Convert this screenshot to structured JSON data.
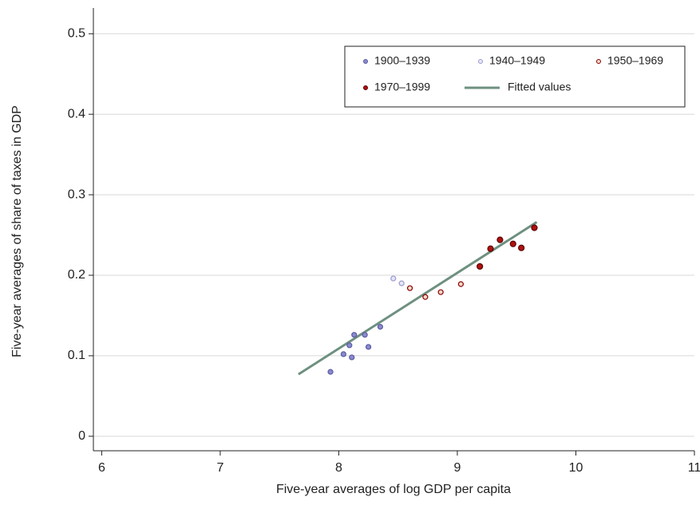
{
  "chart_data": {
    "type": "scatter",
    "x_label": "Five-year averages of log GDP per capita",
    "y_label": "Five-year averages of share of taxes in GDP",
    "xlim": [
      5.93,
      11
    ],
    "ylim": [
      -0.018,
      0.532
    ],
    "xticks": [
      6,
      7,
      8,
      9,
      10,
      11
    ],
    "yticks": [
      0,
      0.1,
      0.2,
      0.3,
      0.4,
      0.5
    ],
    "grid": true,
    "legend": "top-right",
    "series": [
      {
        "name": "1900–1939",
        "color": "#8a8ad0",
        "edge": "#5a5aa0",
        "x": [
          7.93,
          8.04,
          8.09,
          8.11,
          8.13,
          8.22,
          8.25,
          8.35
        ],
        "values": [
          0.08,
          0.102,
          0.113,
          0.098,
          0.126,
          0.126,
          0.111,
          0.136
        ]
      },
      {
        "name": "1940–1949",
        "color": "#e6e6fa",
        "edge": "#9a9ad0",
        "x": [
          8.46,
          8.53
        ],
        "values": [
          0.196,
          0.19
        ]
      },
      {
        "name": "1950–1969",
        "color": "#f2d8c8",
        "edge": "#8b0000",
        "x": [
          8.6,
          8.73,
          8.86,
          9.03
        ],
        "values": [
          0.184,
          0.173,
          0.179,
          0.189
        ]
      },
      {
        "name": "1970–1999",
        "color": "#b01010",
        "edge": "#5a0000",
        "x": [
          9.19,
          9.28,
          9.36,
          9.47,
          9.54,
          9.65
        ],
        "values": [
          0.211,
          0.233,
          0.244,
          0.239,
          0.234,
          0.259
        ]
      }
    ],
    "fit": {
      "name": "Fitted values",
      "color": "#6e9080",
      "x": [
        7.66,
        9.67
      ],
      "values": [
        0.077,
        0.266
      ]
    }
  }
}
